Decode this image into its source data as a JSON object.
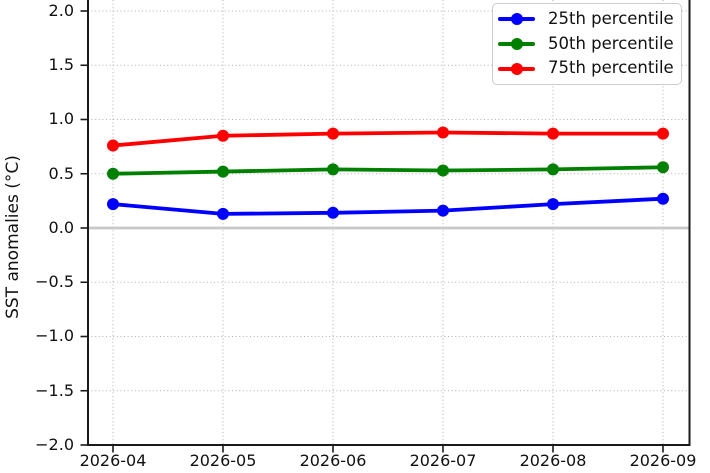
{
  "chart_data": {
    "type": "line",
    "title": "",
    "xlabel": "",
    "ylabel": "SST anomalies (°C)",
    "categories": [
      "2026-04",
      "2026-05",
      "2026-06",
      "2026-07",
      "2026-08",
      "2026-09"
    ],
    "series": [
      {
        "name": "25th percentile",
        "color": "#0000ff",
        "values": [
          0.22,
          0.13,
          0.14,
          0.16,
          0.22,
          0.27
        ]
      },
      {
        "name": "50th percentile",
        "color": "#008000",
        "values": [
          0.5,
          0.52,
          0.54,
          0.53,
          0.54,
          0.56
        ]
      },
      {
        "name": "75th percentile",
        "color": "#ff0000",
        "values": [
          0.76,
          0.85,
          0.87,
          0.88,
          0.87,
          0.87
        ]
      }
    ],
    "ylim": [
      -2.0,
      2.0
    ],
    "yticks": [
      {
        "value": 2.0,
        "label": "2.0"
      },
      {
        "value": 1.5,
        "label": "1.5"
      },
      {
        "value": 1.0,
        "label": "1.0"
      },
      {
        "value": 0.5,
        "label": "0.5"
      },
      {
        "value": 0.0,
        "label": "0.0"
      },
      {
        "value": -0.5,
        "label": "−0.5"
      },
      {
        "value": -1.0,
        "label": "−1.0"
      },
      {
        "value": -1.5,
        "label": "−1.5"
      },
      {
        "value": -2.0,
        "label": "−2.0"
      }
    ],
    "grid": true,
    "zero_line": true,
    "legend": {
      "position": "top-right"
    },
    "colors": {
      "grid": "#b0b0b0",
      "zero_line": "#c8c8c8",
      "axis": "#1a1a1a",
      "background": "#ffffff"
    }
  }
}
